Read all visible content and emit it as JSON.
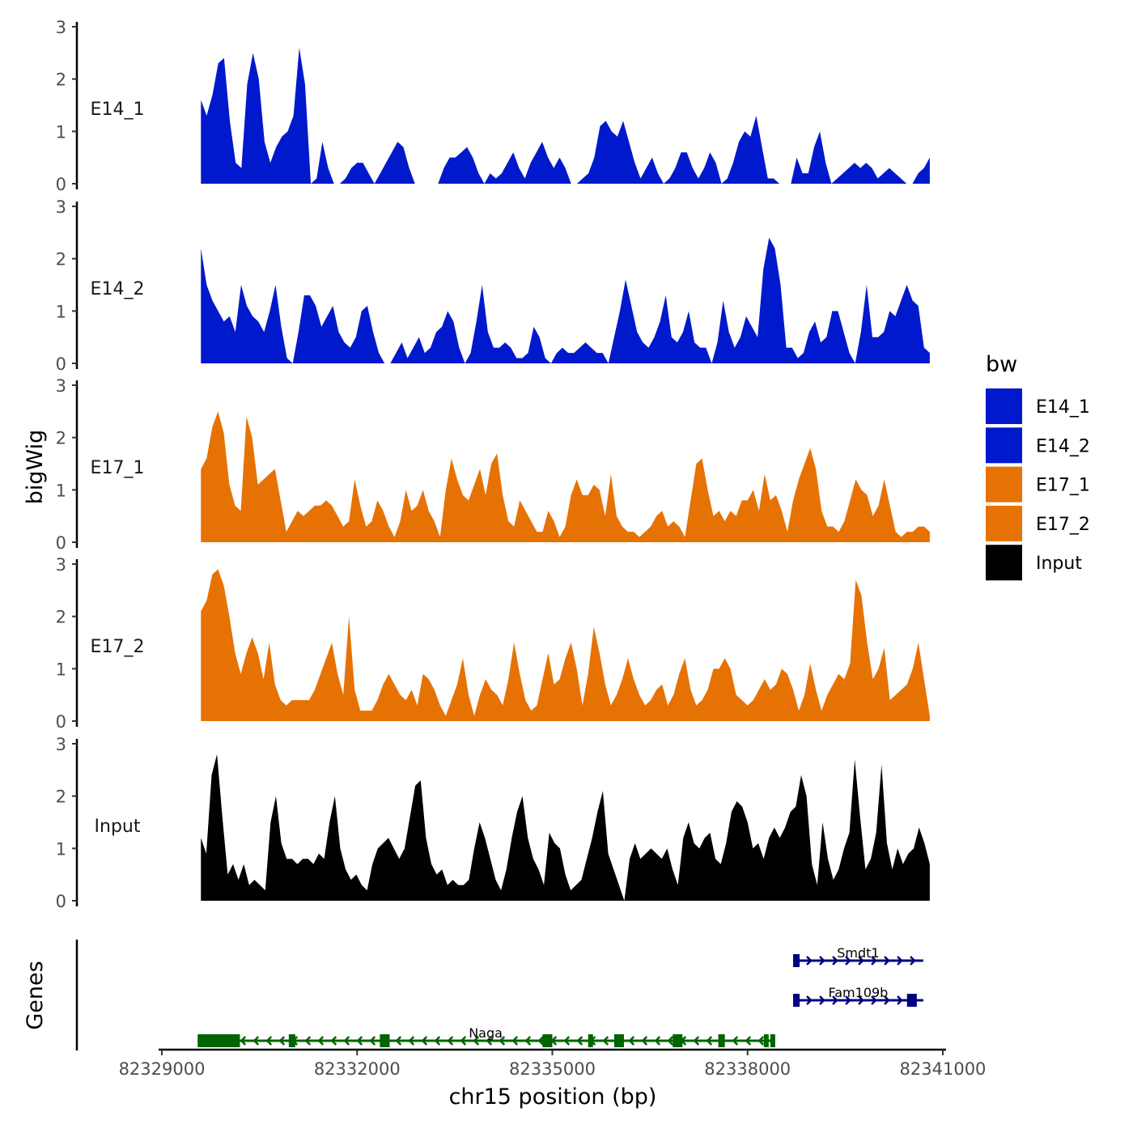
{
  "chart_data": {
    "type": "area",
    "chromosome": "chr15",
    "xlabel": "chr15 position (bp)",
    "ylabel": "bigWig",
    "genes_axis_title": "Genes",
    "xlim": [
      82328950,
      82341050
    ],
    "x_ticks": [
      82329000,
      82332000,
      82335000,
      82338000,
      82341000
    ],
    "x_tick_labels": [
      "82329000",
      "82332000",
      "82335000",
      "82338000",
      "82341000"
    ],
    "ylim": [
      0,
      3
    ],
    "y_ticks": [
      0,
      1,
      2,
      3
    ],
    "y_tick_labels": [
      "0",
      "1",
      "2",
      "3"
    ],
    "track_start": 82329600,
    "track_end": 82340800,
    "legend": {
      "title": "bw",
      "position": "right",
      "entries": [
        {
          "label": "E14_1",
          "color": "#0019CC"
        },
        {
          "label": "E14_2",
          "color": "#0019CC"
        },
        {
          "label": "E17_1",
          "color": "#E77204"
        },
        {
          "label": "E17_2",
          "color": "#E77204"
        },
        {
          "label": "Input",
          "color": "#000000"
        }
      ]
    },
    "series": [
      {
        "name": "E14_1",
        "color": "#0019CC",
        "values": [
          1.6,
          1.3,
          1.7,
          2.3,
          2.4,
          1.2,
          0.4,
          0.3,
          1.9,
          2.5,
          2.0,
          0.8,
          0.4,
          0.7,
          0.9,
          1.0,
          1.3,
          2.6,
          1.9,
          0,
          0.1,
          0.8,
          0.3,
          0,
          0,
          0.1,
          0.3,
          0.4,
          0.4,
          0.2,
          0,
          0.2,
          0.4,
          0.6,
          0.8,
          0.7,
          0.3,
          0,
          0,
          0,
          0,
          0,
          0.3,
          0.5,
          0.5,
          0.6,
          0.7,
          0.5,
          0.2,
          0,
          0.2,
          0.1,
          0.2,
          0.4,
          0.6,
          0.3,
          0.1,
          0.4,
          0.6,
          0.8,
          0.5,
          0.3,
          0.5,
          0.3,
          0,
          0,
          0.1,
          0.2,
          0.5,
          1.1,
          1.2,
          1.0,
          0.9,
          1.2,
          0.8,
          0.4,
          0.1,
          0.3,
          0.5,
          0.2,
          0,
          0.1,
          0.3,
          0.6,
          0.6,
          0.3,
          0.1,
          0.3,
          0.6,
          0.4,
          0,
          0.1,
          0.4,
          0.8,
          1.0,
          0.9,
          1.3,
          0.7,
          0.1,
          0.1,
          0,
          0,
          0,
          0.5,
          0.2,
          0.2,
          0.7,
          1.0,
          0.4,
          0,
          0.1,
          0.2,
          0.3,
          0.4,
          0.3,
          0.4,
          0.3,
          0.1,
          0.2,
          0.3,
          0.2,
          0.1,
          0,
          0,
          0.2,
          0.3,
          0.5
        ]
      },
      {
        "name": "E14_2",
        "color": "#0019CC",
        "values": [
          2.2,
          1.5,
          1.2,
          1.0,
          0.8,
          0.9,
          0.6,
          1.5,
          1.1,
          0.9,
          0.8,
          0.6,
          1.0,
          1.5,
          0.7,
          0.1,
          0,
          0.6,
          1.3,
          1.3,
          1.1,
          0.7,
          0.9,
          1.1,
          0.6,
          0.4,
          0.3,
          0.5,
          1.0,
          1.1,
          0.6,
          0.2,
          0,
          0,
          0.2,
          0.4,
          0.1,
          0.3,
          0.5,
          0.2,
          0.3,
          0.6,
          0.7,
          1.0,
          0.8,
          0.3,
          0,
          0.2,
          0.8,
          1.5,
          0.6,
          0.3,
          0.3,
          0.4,
          0.3,
          0.1,
          0.1,
          0.2,
          0.7,
          0.5,
          0.1,
          0,
          0.2,
          0.3,
          0.2,
          0.2,
          0.3,
          0.4,
          0.3,
          0.2,
          0.2,
          0,
          0.5,
          1.0,
          1.6,
          1.1,
          0.6,
          0.4,
          0.3,
          0.5,
          0.8,
          1.3,
          0.5,
          0.4,
          0.6,
          1.0,
          0.4,
          0.3,
          0.3,
          0,
          0.4,
          1.2,
          0.6,
          0.3,
          0.5,
          0.9,
          0.7,
          0.5,
          1.8,
          2.4,
          2.2,
          1.5,
          0.3,
          0.3,
          0.1,
          0.2,
          0.6,
          0.8,
          0.4,
          0.5,
          1.0,
          1.0,
          0.6,
          0.2,
          0,
          0.6,
          1.5,
          0.5,
          0.5,
          0.6,
          1.0,
          0.9,
          1.2,
          1.5,
          1.2,
          1.1,
          0.3,
          0.2
        ]
      },
      {
        "name": "E17_1",
        "color": "#E77204",
        "values": [
          1.4,
          1.6,
          2.2,
          2.5,
          2.1,
          1.1,
          0.7,
          0.6,
          2.4,
          2.0,
          1.1,
          1.2,
          1.3,
          1.4,
          0.8,
          0.2,
          0.4,
          0.6,
          0.5,
          0.6,
          0.7,
          0.7,
          0.8,
          0.7,
          0.5,
          0.3,
          0.4,
          1.2,
          0.7,
          0.3,
          0.4,
          0.8,
          0.6,
          0.3,
          0.1,
          0.4,
          1.0,
          0.6,
          0.7,
          1.0,
          0.6,
          0.4,
          0.1,
          1.0,
          1.6,
          1.2,
          0.9,
          0.8,
          1.1,
          1.4,
          0.9,
          1.5,
          1.7,
          0.9,
          0.4,
          0.3,
          0.8,
          0.6,
          0.4,
          0.2,
          0.2,
          0.6,
          0.4,
          0.1,
          0.3,
          0.9,
          1.2,
          0.9,
          0.9,
          1.1,
          1.0,
          0.5,
          1.3,
          0.5,
          0.3,
          0.2,
          0.2,
          0.1,
          0.2,
          0.3,
          0.5,
          0.6,
          0.3,
          0.4,
          0.3,
          0.1,
          0.8,
          1.5,
          1.6,
          1.0,
          0.5,
          0.6,
          0.4,
          0.6,
          0.5,
          0.8,
          0.8,
          1.0,
          0.6,
          1.3,
          0.8,
          0.9,
          0.6,
          0.2,
          0.8,
          1.2,
          1.5,
          1.8,
          1.4,
          0.6,
          0.3,
          0.3,
          0.2,
          0.4,
          0.8,
          1.2,
          1.0,
          0.9,
          0.5,
          0.7,
          1.2,
          0.7,
          0.2,
          0.1,
          0.2,
          0.2,
          0.3,
          0.3,
          0.2
        ]
      },
      {
        "name": "E17_2",
        "color": "#E77204",
        "values": [
          2.1,
          2.3,
          2.8,
          2.9,
          2.6,
          2.0,
          1.3,
          0.9,
          1.3,
          1.6,
          1.3,
          0.8,
          1.5,
          0.7,
          0.4,
          0.3,
          0.4,
          0.4,
          0.4,
          0.4,
          0.6,
          0.9,
          1.2,
          1.5,
          0.9,
          0.5,
          2.0,
          0.6,
          0.2,
          0.2,
          0.2,
          0.4,
          0.7,
          0.9,
          0.7,
          0.5,
          0.4,
          0.6,
          0.3,
          0.9,
          0.8,
          0.6,
          0.3,
          0.1,
          0.4,
          0.7,
          1.2,
          0.5,
          0.1,
          0.5,
          0.8,
          0.6,
          0.5,
          0.3,
          0.8,
          1.5,
          0.9,
          0.4,
          0.2,
          0.3,
          0.8,
          1.3,
          0.7,
          0.8,
          1.2,
          1.5,
          1.0,
          0.3,
          0.9,
          1.8,
          1.3,
          0.7,
          0.3,
          0.5,
          0.8,
          1.2,
          0.8,
          0.5,
          0.3,
          0.4,
          0.6,
          0.7,
          0.3,
          0.5,
          0.9,
          1.2,
          0.6,
          0.3,
          0.4,
          0.6,
          1.0,
          1.0,
          1.2,
          1.0,
          0.5,
          0.4,
          0.3,
          0.4,
          0.6,
          0.8,
          0.6,
          0.7,
          1.0,
          0.9,
          0.6,
          0.2,
          0.5,
          1.1,
          0.6,
          0.2,
          0.5,
          0.7,
          0.9,
          0.8,
          1.1,
          2.7,
          2.4,
          1.5,
          0.8,
          1.0,
          1.4,
          0.4,
          0.5,
          0.6,
          0.7,
          1.0,
          1.5,
          0.8,
          0.1
        ]
      },
      {
        "name": "Input",
        "color": "#000000",
        "values": [
          1.2,
          0.9,
          2.4,
          2.8,
          1.6,
          0.5,
          0.7,
          0.4,
          0.7,
          0.3,
          0.4,
          0.3,
          0.2,
          1.5,
          2.0,
          1.1,
          0.8,
          0.8,
          0.7,
          0.8,
          0.8,
          0.7,
          0.9,
          0.8,
          1.5,
          2.0,
          1.0,
          0.6,
          0.4,
          0.5,
          0.3,
          0.2,
          0.7,
          1.0,
          1.1,
          1.2,
          1.0,
          0.8,
          1.0,
          1.6,
          2.2,
          2.3,
          1.2,
          0.7,
          0.5,
          0.6,
          0.3,
          0.4,
          0.3,
          0.3,
          0.4,
          1.0,
          1.5,
          1.2,
          0.8,
          0.4,
          0.2,
          0.6,
          1.2,
          1.7,
          2.0,
          1.2,
          0.8,
          0.6,
          0.3,
          1.3,
          1.1,
          1.0,
          0.5,
          0.2,
          0.3,
          0.4,
          0.8,
          1.2,
          1.7,
          2.1,
          0.9,
          0.6,
          0.3,
          0,
          0.8,
          1.1,
          0.8,
          0.9,
          1.0,
          0.9,
          0.8,
          1.0,
          0.6,
          0.3,
          1.2,
          1.5,
          1.1,
          1.0,
          1.2,
          1.3,
          0.8,
          0.7,
          1.1,
          1.7,
          1.9,
          1.8,
          1.5,
          1.0,
          1.1,
          0.8,
          1.2,
          1.4,
          1.2,
          1.4,
          1.7,
          1.8,
          2.4,
          2.0,
          0.7,
          0.3,
          1.5,
          0.8,
          0.4,
          0.6,
          1.0,
          1.3,
          2.7,
          1.6,
          0.6,
          0.8,
          1.3,
          2.6,
          1.1,
          0.6,
          1.0,
          0.7,
          0.9,
          1.0,
          1.4,
          1.1,
          0.7
        ]
      }
    ],
    "genes": [
      {
        "name": "Smdt1",
        "strand": "+",
        "color": "#000080",
        "start": 82338700,
        "end": 82340700,
        "row": 1,
        "exons": [
          [
            82338700,
            82338800
          ]
        ]
      },
      {
        "name": "Fam109b",
        "strand": "+",
        "color": "#000080",
        "start": 82338700,
        "end": 82340700,
        "row": 2,
        "exons": [
          [
            82338700,
            82338800
          ],
          [
            82340450,
            82340600
          ]
        ]
      },
      {
        "name": "Naga",
        "strand": "-",
        "color": "#006400",
        "start": 82329550,
        "end": 82338400,
        "row": 3,
        "exons": [
          [
            82329550,
            82330200
          ],
          [
            82330950,
            82331050
          ],
          [
            82332350,
            82332500
          ],
          [
            82334850,
            82335000
          ],
          [
            82335550,
            82335600
          ],
          [
            82335950,
            82336100
          ],
          [
            82336850,
            82337000
          ],
          [
            82337550,
            82337650
          ],
          [
            82338250,
            82338300
          ],
          [
            82338350,
            82338400
          ]
        ]
      }
    ]
  }
}
